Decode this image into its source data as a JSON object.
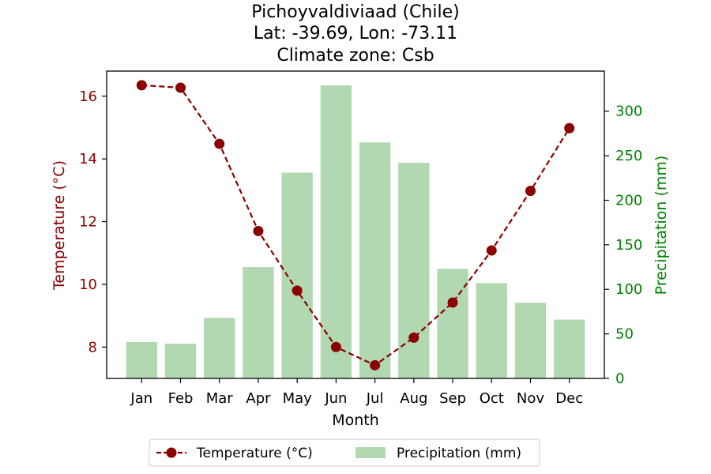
{
  "chart_data": {
    "type": "bar+line",
    "title_lines": [
      "Pichoyvaldiviaad (Chile)",
      "Lat: -39.69, Lon: -73.11",
      "Climate zone: Csb"
    ],
    "xlabel": "Month",
    "ylabel_left": "Temperature (°C)",
    "ylabel_right": "Precipitation (mm)",
    "categories": [
      "Jan",
      "Feb",
      "Mar",
      "Apr",
      "May",
      "Jun",
      "Jul",
      "Aug",
      "Sep",
      "Oct",
      "Nov",
      "Dec"
    ],
    "temperature": {
      "name": "Temperature (°C)",
      "values": [
        16.35,
        16.27,
        14.48,
        11.7,
        9.8,
        8.0,
        7.42,
        8.3,
        9.42,
        11.08,
        12.98,
        14.98
      ],
      "ylim": [
        7.0,
        16.8
      ],
      "ticks": [
        8,
        10,
        12,
        14,
        16
      ]
    },
    "precipitation": {
      "name": "Precipitation (mm)",
      "values": [
        41,
        39,
        68,
        125,
        231,
        329,
        265,
        242,
        123,
        107,
        85,
        66
      ],
      "ylim": [
        0,
        345
      ],
      "ticks": [
        0,
        50,
        100,
        150,
        200,
        250,
        300
      ]
    },
    "colors": {
      "temperature": "#8b0000",
      "precipitation_bar": "#b2d8b2",
      "precipitation_axis": "#008000"
    },
    "grid": false,
    "legend_position": "bottom-center"
  }
}
